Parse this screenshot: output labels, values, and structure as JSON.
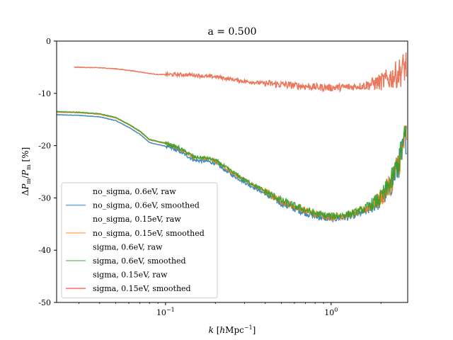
{
  "chart_data": {
    "type": "line",
    "title": "a = 0.500",
    "xlabel": "k [hMpc^{-1}]",
    "ylabel": "ΔP_m/P_m [%]",
    "xscale": "log",
    "xlim": [
      0.022,
      2.9
    ],
    "ylim": [
      -50,
      0
    ],
    "x_ticks": [
      {
        "value": 0.1,
        "label": "10^{-1}"
      },
      {
        "value": 1.0,
        "label": "10^{0}"
      }
    ],
    "y_ticks": [
      {
        "value": 0,
        "label": "0"
      },
      {
        "value": -10,
        "label": "-10"
      },
      {
        "value": -20,
        "label": "-20"
      },
      {
        "value": -30,
        "label": "-30"
      },
      {
        "value": -40,
        "label": "-40"
      },
      {
        "value": -50,
        "label": "-50"
      }
    ],
    "grid": false,
    "legend_position": "lower-left",
    "legend": [
      {
        "label": "no_sigma, 0.6eV, raw",
        "color": "#1f77b4",
        "style": "none"
      },
      {
        "label": "no_sigma, 0.6eV, smoothed",
        "color": "#7fb1d9",
        "style": "line"
      },
      {
        "label": "no_sigma, 0.15eV, raw",
        "color": "#ff7f0e",
        "style": "none"
      },
      {
        "label": "no_sigma, 0.15eV, smoothed",
        "color": "#ffbe86",
        "style": "line"
      },
      {
        "label": "sigma, 0.6eV, raw",
        "color": "#2ca02c",
        "style": "none"
      },
      {
        "label": "sigma, 0.6eV, smoothed",
        "color": "#8ccf8c",
        "style": "line"
      },
      {
        "label": "sigma, 0.15eV, raw",
        "color": "#d62728",
        "style": "none"
      },
      {
        "label": "sigma, 0.15eV, smoothed",
        "color": "#f08a80",
        "style": "line"
      }
    ],
    "series": [
      {
        "name": "no_sigma, 0.6eV",
        "color": "#1f77b4",
        "x": [
          0.022,
          0.03,
          0.04,
          0.05,
          0.06,
          0.07,
          0.08,
          0.09,
          0.1,
          0.12,
          0.15,
          0.18,
          0.2,
          0.25,
          0.3,
          0.4,
          0.5,
          0.6,
          0.8,
          1.0,
          1.3,
          1.6,
          2.0,
          2.3,
          2.6,
          2.85
        ],
        "y": [
          -14.1,
          -14.2,
          -14.5,
          -15.2,
          -16.5,
          -17.8,
          -19.4,
          -19.8,
          -20.1,
          -21.0,
          -22.8,
          -23.0,
          -23.4,
          -25.5,
          -27.0,
          -29.2,
          -31.0,
          -32.0,
          -33.5,
          -34.0,
          -33.6,
          -32.6,
          -30.5,
          -27.5,
          -23.0,
          -18.0
        ]
      },
      {
        "name": "no_sigma, 0.15eV",
        "color": "#ff7f0e",
        "x": [
          0.022,
          0.03,
          0.04,
          0.05,
          0.06,
          0.07,
          0.08,
          0.09,
          0.1,
          0.12,
          0.15,
          0.18,
          0.2,
          0.25,
          0.3,
          0.4,
          0.5,
          0.6,
          0.8,
          1.0,
          1.3,
          1.6,
          2.0,
          2.3,
          2.6,
          2.85
        ],
        "y": [
          -13.6,
          -13.7,
          -14.0,
          -14.7,
          -16.0,
          -17.3,
          -18.9,
          -19.3,
          -19.6,
          -20.5,
          -22.3,
          -22.5,
          -22.9,
          -25.0,
          -26.6,
          -28.8,
          -30.6,
          -31.6,
          -33.1,
          -33.6,
          -33.2,
          -32.2,
          -30.1,
          -27.1,
          -22.6,
          -17.6
        ]
      },
      {
        "name": "sigma, 0.6eV",
        "color": "#2ca02c",
        "x": [
          0.022,
          0.03,
          0.04,
          0.05,
          0.06,
          0.07,
          0.08,
          0.09,
          0.1,
          0.12,
          0.15,
          0.18,
          0.2,
          0.25,
          0.3,
          0.4,
          0.5,
          0.6,
          0.8,
          1.0,
          1.3,
          1.6,
          2.0,
          2.3,
          2.6,
          2.85
        ],
        "y": [
          -13.5,
          -13.6,
          -13.9,
          -14.6,
          -15.9,
          -17.2,
          -18.8,
          -19.2,
          -19.5,
          -20.4,
          -22.2,
          -22.4,
          -22.8,
          -24.9,
          -26.5,
          -28.7,
          -30.5,
          -31.5,
          -33.0,
          -33.5,
          -33.1,
          -32.1,
          -30.0,
          -27.0,
          -22.5,
          -17.5
        ]
      },
      {
        "name": "sigma, 0.15eV",
        "color": "#e8603f",
        "x": [
          0.028,
          0.04,
          0.05,
          0.06,
          0.07,
          0.08,
          0.09,
          0.1,
          0.12,
          0.15,
          0.18,
          0.2,
          0.25,
          0.3,
          0.4,
          0.5,
          0.6,
          0.8,
          1.0,
          1.3,
          1.6,
          2.0,
          2.3,
          2.6,
          2.85
        ],
        "y": [
          -5.0,
          -5.1,
          -5.3,
          -5.6,
          -5.9,
          -6.2,
          -6.4,
          -6.4,
          -6.4,
          -6.5,
          -6.8,
          -6.8,
          -7.3,
          -7.7,
          -8.1,
          -8.3,
          -8.5,
          -8.8,
          -8.9,
          -8.8,
          -8.5,
          -7.8,
          -7.0,
          -6.0,
          -4.5
        ]
      }
    ]
  }
}
